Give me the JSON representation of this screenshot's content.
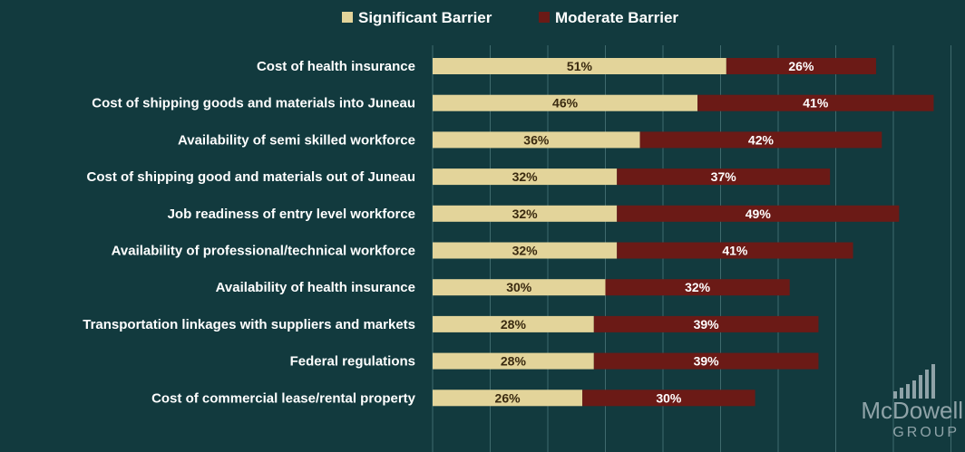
{
  "chart_data": {
    "type": "bar",
    "orientation": "horizontal",
    "stacked": true,
    "categories": [
      "Cost of health insurance",
      "Cost of shipping goods and materials into Juneau",
      "Availability of semi skilled workforce",
      "Cost of shipping good and materials out of Juneau",
      "Job readiness of entry level workforce",
      "Availability of professional/technical workforce",
      "Availability of health insurance",
      "Transportation linkages with suppliers and markets",
      "Federal regulations",
      "Cost of commercial lease/rental property"
    ],
    "series": [
      {
        "name": "Significant Barrier",
        "color": "#e3d49a",
        "values": [
          51,
          46,
          36,
          32,
          32,
          32,
          30,
          28,
          28,
          26
        ],
        "labels": [
          "51%",
          "46%",
          "36%",
          "32%",
          "32%",
          "32%",
          "30%",
          "28%",
          "28%",
          "26%"
        ]
      },
      {
        "name": "Moderate Barrier",
        "color": "#6b1a16",
        "values": [
          26,
          41,
          42,
          37,
          49,
          41,
          32,
          39,
          39,
          30
        ],
        "labels": [
          "26%",
          "41%",
          "42%",
          "37%",
          "49%",
          "41%",
          "32%",
          "39%",
          "39%",
          "30%"
        ]
      }
    ],
    "xlim": [
      0,
      92
    ],
    "grid": true,
    "legend": "top",
    "title": "",
    "xlabel": "",
    "ylabel": ""
  },
  "logo": {
    "line1": "McDowell",
    "line2": "GROUP"
  },
  "colors": {
    "background": "#123a3e",
    "grid": "#3f6a6d",
    "label_dark": "#3a2a10",
    "label_light": "#ffffff"
  }
}
